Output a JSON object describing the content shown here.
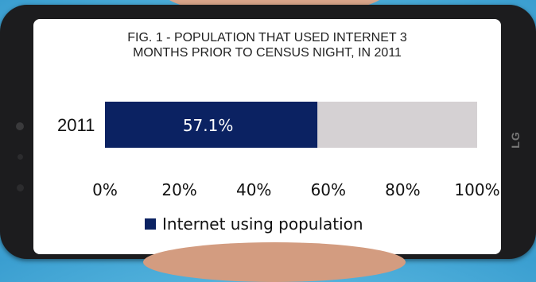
{
  "chart_data": {
    "type": "bar",
    "orientation": "horizontal",
    "stacked": true,
    "title": "FIG. 1 - POPULATION THAT USED INTERNET 3 MONTHS PRIOR TO CENSUS NIGHT, IN 2011",
    "title_lines": [
      "FIG. 1 - POPULATION THAT USED INTERNET 3",
      "MONTHS PRIOR TO CENSUS NIGHT, IN 2011"
    ],
    "categories": [
      "2011"
    ],
    "series": [
      {
        "name": "Internet using population",
        "values": [
          57.1
        ],
        "color": "#0b2262",
        "label": "57.1%"
      },
      {
        "values": [
          42.9
        ],
        "color": "#d5d1d3"
      }
    ],
    "xlim": [
      0,
      100
    ],
    "x_ticks": [
      0,
      20,
      40,
      60,
      80,
      100
    ],
    "x_tick_labels": [
      "0%",
      "20%",
      "40%",
      "60%",
      "80%",
      "100%"
    ],
    "legend_position": "bottom",
    "grid": false
  }
}
